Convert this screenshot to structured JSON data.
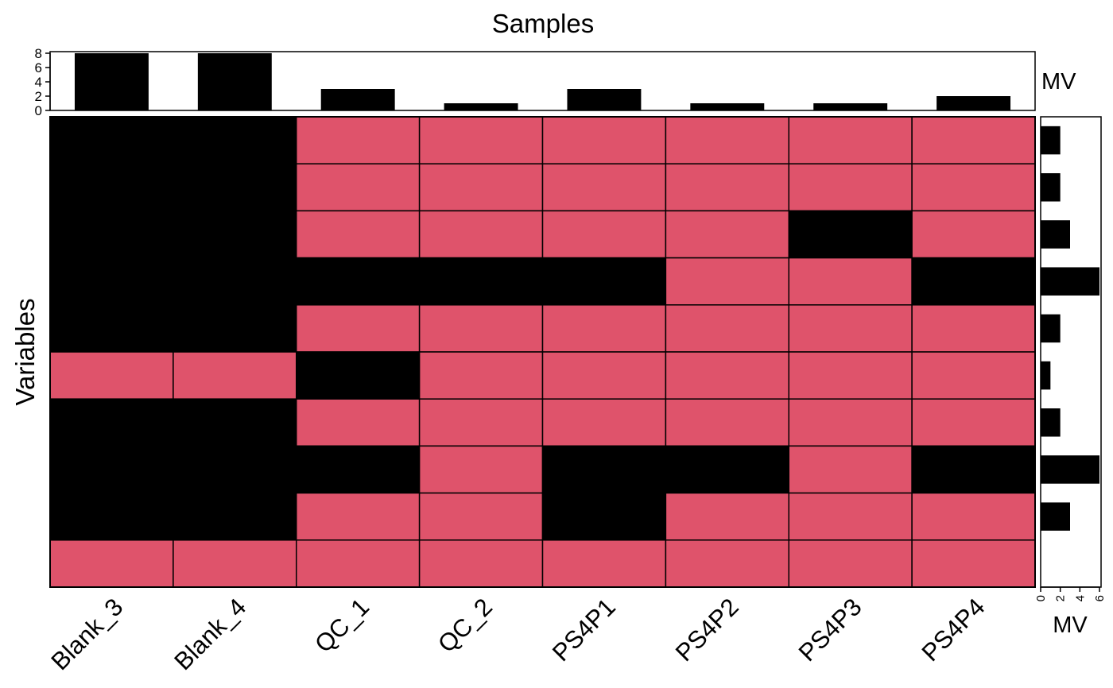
{
  "colors": {
    "missing": "#000000",
    "present": "#DF536B",
    "bar": "#000000",
    "frame": "#000000",
    "background": "#FFFFFF"
  },
  "chart_data": {
    "type": "heatmap",
    "title": "Samples",
    "ylabel": "Variables",
    "samples": [
      "Blank_3",
      "Blank_4",
      "QC_1",
      "QC_2",
      "PS4P1",
      "PS4P2",
      "PS4P3",
      "PS4P4"
    ],
    "matrix": [
      [
        1,
        1,
        0,
        0,
        0,
        0,
        0,
        0
      ],
      [
        1,
        1,
        0,
        0,
        0,
        0,
        0,
        0
      ],
      [
        1,
        1,
        0,
        0,
        0,
        0,
        1,
        0
      ],
      [
        1,
        1,
        1,
        1,
        1,
        0,
        0,
        1
      ],
      [
        1,
        1,
        0,
        0,
        0,
        0,
        0,
        0
      ],
      [
        0,
        0,
        1,
        0,
        0,
        0,
        0,
        0
      ],
      [
        1,
        1,
        0,
        0,
        0,
        0,
        0,
        0
      ],
      [
        1,
        1,
        1,
        0,
        1,
        1,
        0,
        1
      ],
      [
        1,
        1,
        0,
        0,
        1,
        0,
        0,
        0
      ],
      [
        0,
        0,
        0,
        0,
        0,
        0,
        0,
        0
      ]
    ],
    "legend": {
      "missing": "black",
      "present": "red"
    },
    "top_bars": {
      "label": "MV",
      "values": [
        8,
        8,
        3,
        1,
        3,
        1,
        1,
        2
      ],
      "ticks": [
        "0",
        "2",
        "4",
        "6",
        "8"
      ],
      "ylim": [
        0,
        8
      ]
    },
    "side_bars": {
      "label": "MV",
      "values": [
        2,
        2,
        3,
        6,
        2,
        1,
        2,
        6,
        3,
        0
      ],
      "ticks": [
        "0",
        "2",
        "4",
        "6"
      ],
      "xlim": [
        0,
        6
      ]
    }
  }
}
